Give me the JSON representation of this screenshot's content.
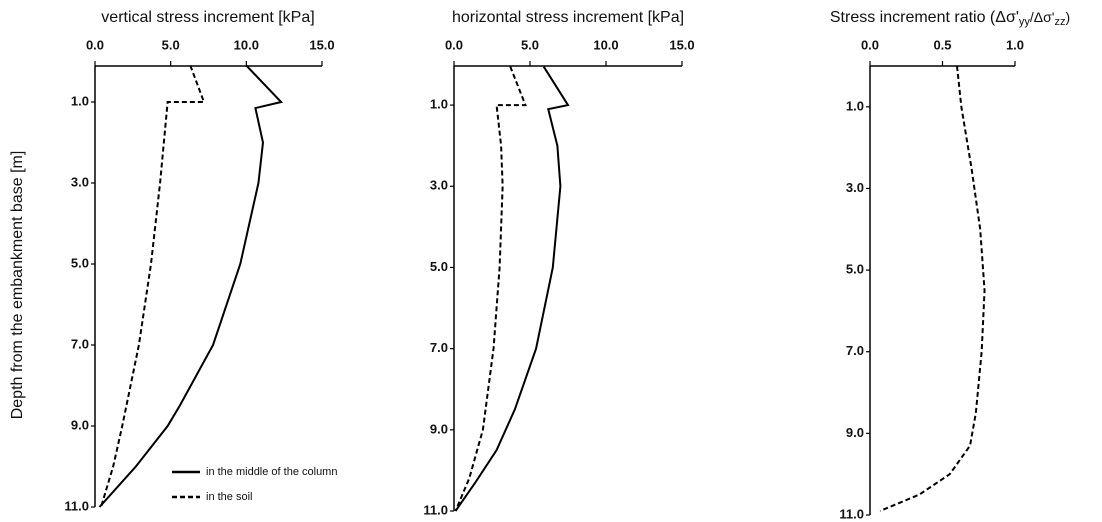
{
  "chart_data": [
    {
      "type": "line",
      "title": "vertical stress increment  [kPa]",
      "ylabel": "Depth from the embankment base [m]",
      "xlim": [
        0,
        15
      ],
      "xticks": [
        {
          "value": 0,
          "label": "0.0"
        },
        {
          "value": 5,
          "label": "5.0"
        },
        {
          "value": 10,
          "label": "10.0"
        },
        {
          "value": 15,
          "label": "15.0"
        }
      ],
      "ylim": [
        0,
        11
      ],
      "yticks": [
        {
          "value": 1,
          "label": "1.0"
        },
        {
          "value": 3,
          "label": "3.0"
        },
        {
          "value": 5,
          "label": "5.0"
        },
        {
          "value": 7,
          "label": "7.0"
        },
        {
          "value": 9,
          "label": "9.0"
        },
        {
          "value": 11,
          "label": "11.0"
        }
      ],
      "legend": "lower right",
      "series": [
        {
          "name": "in the middle of the column",
          "color": "#000000",
          "dashed": false,
          "y": [
            0.1,
            1.0,
            1.15,
            2,
            3,
            5,
            7,
            8.5,
            9,
            10,
            11
          ],
          "values": [
            10.0,
            12.3,
            10.6,
            11.1,
            10.8,
            9.6,
            7.8,
            5.6,
            4.8,
            2.7,
            0.3
          ]
        },
        {
          "name": "in the soil",
          "color": "#000000",
          "dashed": true,
          "y": [
            0.1,
            1.0,
            1.0,
            3,
            5,
            7,
            9,
            10,
            11
          ],
          "values": [
            6.3,
            7.2,
            4.8,
            4.3,
            3.7,
            2.9,
            1.8,
            1.2,
            0.4
          ]
        }
      ]
    },
    {
      "type": "line",
      "title": "horizontal stress increment  [kPa]",
      "xlim": [
        0,
        15
      ],
      "xticks": [
        {
          "value": 0,
          "label": "0.0"
        },
        {
          "value": 5,
          "label": "5.0"
        },
        {
          "value": 10,
          "label": "10.0"
        },
        {
          "value": 15,
          "label": "15.0"
        }
      ],
      "ylim": [
        0,
        11
      ],
      "yticks": [
        {
          "value": 1,
          "label": "1.0"
        },
        {
          "value": 3,
          "label": "3.0"
        },
        {
          "value": 5,
          "label": "5.0"
        },
        {
          "value": 7,
          "label": "7.0"
        },
        {
          "value": 9,
          "label": "9.0"
        },
        {
          "value": 11,
          "label": "11.0"
        }
      ],
      "series": [
        {
          "color": "#000000",
          "dashed": false,
          "y": [
            0.05,
            1.0,
            1.1,
            2,
            3,
            5,
            7,
            8.5,
            9.5,
            10.3,
            11
          ],
          "values": [
            5.9,
            7.5,
            6.2,
            6.8,
            7.0,
            6.5,
            5.4,
            4.0,
            2.8,
            1.4,
            0.1
          ]
        },
        {
          "color": "#000000",
          "dashed": true,
          "y": [
            0.05,
            1.0,
            1.0,
            2,
            3,
            5,
            7,
            9,
            10.2,
            11
          ],
          "values": [
            3.7,
            4.7,
            2.8,
            3.1,
            3.2,
            3.0,
            2.6,
            1.9,
            1.0,
            0.1
          ]
        }
      ]
    },
    {
      "type": "line",
      "title": [
        "Stress increment ratio (Δσ'",
        "yy",
        "/Δσ'",
        "zz",
        ")"
      ],
      "xlim": [
        0,
        1
      ],
      "xticks": [
        {
          "value": 0,
          "label": "0.0"
        },
        {
          "value": 0.5,
          "label": "0.5"
        },
        {
          "value": 1,
          "label": "1.0"
        }
      ],
      "ylim": [
        0,
        11
      ],
      "yticks": [
        {
          "value": 1,
          "label": "1.0"
        },
        {
          "value": 3,
          "label": "3.0"
        },
        {
          "value": 5,
          "label": "5.0"
        },
        {
          "value": 7,
          "label": "7.0"
        },
        {
          "value": 9,
          "label": "9.0"
        },
        {
          "value": 11,
          "label": "11.0"
        }
      ],
      "series": [
        {
          "color": "#000000",
          "dashed": true,
          "y": [
            0,
            1,
            2.5,
            4,
            5.5,
            7,
            8.5,
            9.3,
            10,
            10.5,
            10.9
          ],
          "values": [
            0.6,
            0.63,
            0.7,
            0.76,
            0.79,
            0.77,
            0.73,
            0.69,
            0.55,
            0.34,
            0.07
          ]
        }
      ]
    }
  ]
}
